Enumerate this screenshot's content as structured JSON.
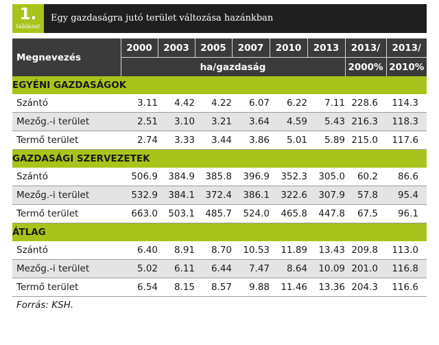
{
  "badge": {
    "number": "1.",
    "word": "táblázat"
  },
  "title": "Egy gazdaságra jutó terület változása hazánkban",
  "header": {
    "name_col": "Megnevezés",
    "years": [
      "2000",
      "2003",
      "2005",
      "2007",
      "2010",
      "2013"
    ],
    "unit": "ha/gazdaság",
    "ratios": [
      {
        "top": "2013/",
        "bottom": "2000%"
      },
      {
        "top": "2013/",
        "bottom": "2010%"
      }
    ]
  },
  "sections": [
    {
      "title": "EGYÉNI GAZDASÁGOK",
      "rows": [
        {
          "label": "Szántó",
          "values": [
            "3.11",
            "4.42",
            "4.22",
            "6.07",
            "6.22",
            "7.11"
          ],
          "ratios": [
            "228.6",
            "114.3"
          ]
        },
        {
          "label": "Mezőg.-i terület",
          "values": [
            "2.51",
            "3.10",
            "3.21",
            "3.64",
            "4.59",
            "5.43"
          ],
          "ratios": [
            "216.3",
            "118.3"
          ]
        },
        {
          "label": "Termő terület",
          "values": [
            "2.74",
            "3.33",
            "3.44",
            "3.86",
            "5.01",
            "5.89"
          ],
          "ratios": [
            "215.0",
            "117.6"
          ]
        }
      ]
    },
    {
      "title": "GAZDASÁGI SZERVEZETEK",
      "rows": [
        {
          "label": "Szántó",
          "values": [
            "506.9",
            "384.9",
            "385.8",
            "396.9",
            "352.3",
            "305.0"
          ],
          "ratios": [
            "60.2",
            "86.6"
          ]
        },
        {
          "label": "Mezőg.-i terület",
          "values": [
            "532.9",
            "384.1",
            "372.4",
            "386.1",
            "322.6",
            "307.9"
          ],
          "ratios": [
            "57.8",
            "95.4"
          ]
        },
        {
          "label": "Termő terület",
          "values": [
            "663.0",
            "503.1",
            "485.7",
            "524.0",
            "465.8",
            "447.8"
          ],
          "ratios": [
            "67.5",
            "96.1"
          ]
        }
      ]
    },
    {
      "title": "ÁTLAG",
      "rows": [
        {
          "label": "Szántó",
          "values": [
            "6.40",
            "8.91",
            "8.70",
            "10.53",
            "11.89",
            "13.43"
          ],
          "ratios": [
            "209.8",
            "113.0"
          ]
        },
        {
          "label": "Mezőg.-i terület",
          "values": [
            "5.02",
            "6.11",
            "6.44",
            "7.47",
            "8.64",
            "10.09"
          ],
          "ratios": [
            "201.0",
            "116.8"
          ]
        },
        {
          "label": "Termő terület",
          "values": [
            "6.54",
            "8.15",
            "8.57",
            "9.88",
            "11.46",
            "13.36"
          ],
          "ratios": [
            "204.3",
            "116.6"
          ]
        }
      ]
    }
  ],
  "source": "Forrás: KSH."
}
